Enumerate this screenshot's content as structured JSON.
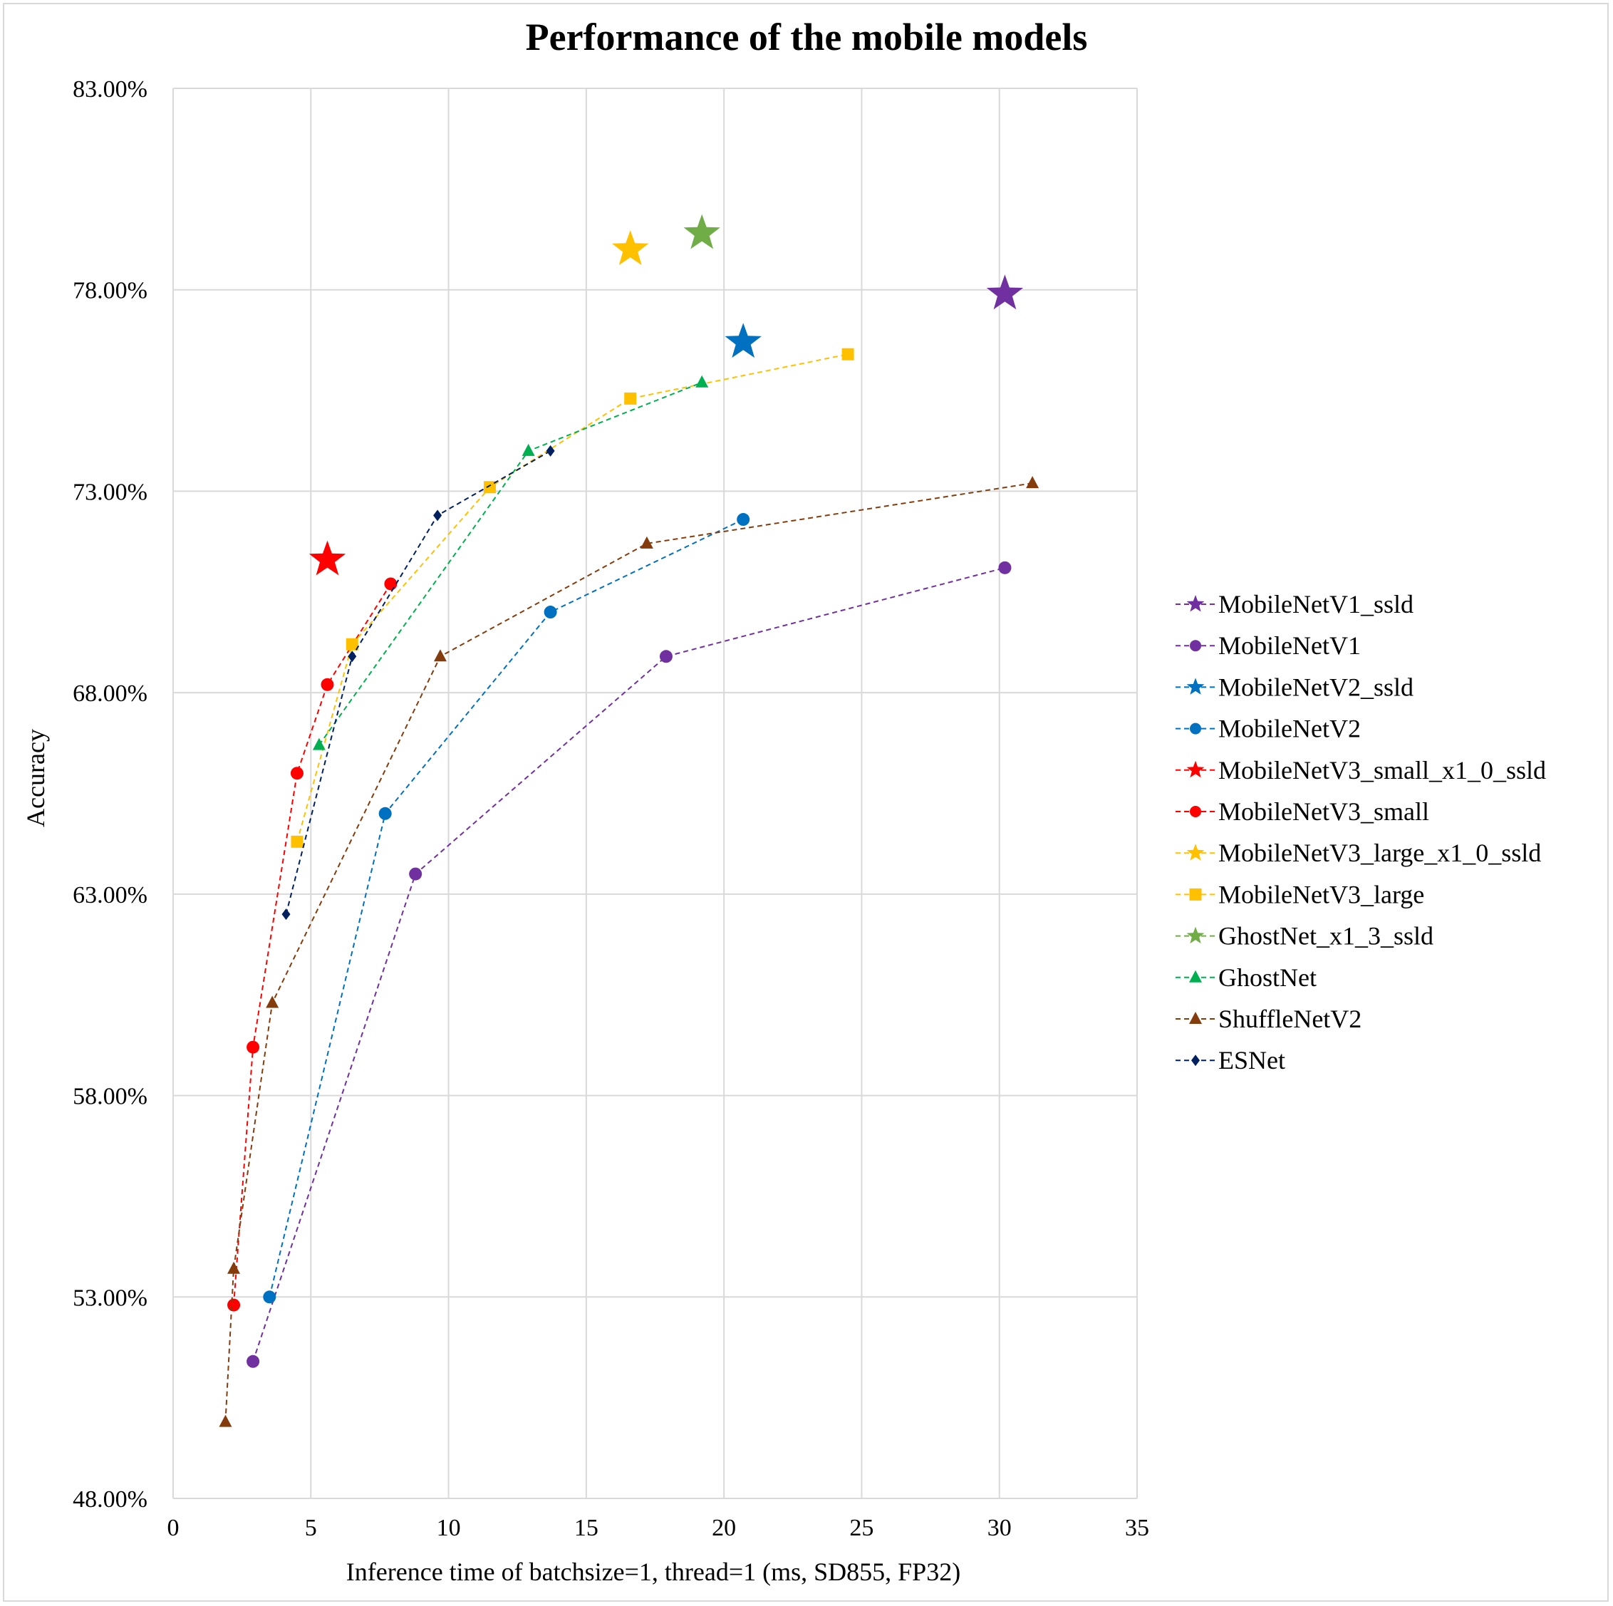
{
  "chart_data": {
    "type": "scatter",
    "title": "Performance of the mobile models",
    "xlabel": "Inference time of batchsize=1, thread=1 (ms, SD855, FP32)",
    "ylabel": "Accuracy",
    "xlim": [
      0,
      35
    ],
    "ylim": [
      0.48,
      0.83
    ],
    "x_ticks": [
      0,
      5,
      10,
      15,
      20,
      25,
      30,
      35
    ],
    "x_tick_labels": [
      "0",
      "5",
      "10",
      "15",
      "20",
      "25",
      "30",
      "35"
    ],
    "y_ticks": [
      0.48,
      0.53,
      0.58,
      0.63,
      0.68,
      0.73,
      0.78,
      0.83
    ],
    "y_tick_labels": [
      "48.00%",
      "53.00%",
      "58.00%",
      "63.00%",
      "68.00%",
      "73.00%",
      "78.00%",
      "83.00%"
    ],
    "grid": "vertical and horizontal major gridlines",
    "legend_position": "right",
    "series": [
      {
        "name": "MobileNetV1_ssld",
        "color": "#7030a0",
        "marker": "star",
        "line": false,
        "x": [
          30.2
        ],
        "y": [
          0.779
        ]
      },
      {
        "name": "MobileNetV1",
        "color": "#7030a0",
        "marker": "circle",
        "line": true,
        "x": [
          2.9,
          8.8,
          17.9,
          30.2
        ],
        "y": [
          0.514,
          0.635,
          0.689,
          0.711
        ]
      },
      {
        "name": "MobileNetV2_ssld",
        "color": "#0070c0",
        "marker": "star",
        "line": false,
        "x": [
          20.7
        ],
        "y": [
          0.767
        ]
      },
      {
        "name": "MobileNetV2",
        "color": "#0070c0",
        "marker": "circle",
        "line": true,
        "x": [
          3.5,
          7.7,
          13.7,
          20.7
        ],
        "y": [
          0.53,
          0.65,
          0.7,
          0.723
        ]
      },
      {
        "name": "MobileNetV3_small_x1_0_ssld",
        "color": "#ff0000",
        "marker": "star",
        "line": false,
        "x": [
          5.6
        ],
        "y": [
          0.713
        ]
      },
      {
        "name": "MobileNetV3_small",
        "color": "#ff0000",
        "marker": "circle",
        "line": true,
        "x": [
          2.2,
          2.9,
          4.5,
          5.6,
          7.9
        ],
        "y": [
          0.528,
          0.592,
          0.66,
          0.682,
          0.707
        ]
      },
      {
        "name": "MobileNetV3_large_x1_0_ssld",
        "color": "#ffc000",
        "marker": "star",
        "line": false,
        "x": [
          16.6
        ],
        "y": [
          0.79
        ]
      },
      {
        "name": "MobileNetV3_large",
        "color": "#ffc000",
        "marker": "square",
        "line": true,
        "x": [
          4.5,
          6.5,
          11.5,
          16.6,
          24.5
        ],
        "y": [
          0.643,
          0.692,
          0.731,
          0.753,
          0.764
        ]
      },
      {
        "name": "GhostNet_x1_3_ssld",
        "color": "#70ad47",
        "marker": "star",
        "line": false,
        "x": [
          19.2
        ],
        "y": [
          0.794
        ]
      },
      {
        "name": "GhostNet",
        "color": "#00b050",
        "marker": "triangle",
        "line": true,
        "x": [
          5.3,
          12.9,
          19.2
        ],
        "y": [
          0.667,
          0.74,
          0.757
        ]
      },
      {
        "name": "ShuffleNetV2",
        "color": "#843c0c",
        "marker": "triangle",
        "line": true,
        "x": [
          1.9,
          2.2,
          3.6,
          9.7,
          17.2,
          31.2
        ],
        "y": [
          0.499,
          0.537,
          0.603,
          0.689,
          0.717,
          0.732
        ]
      },
      {
        "name": "ESNet",
        "color": "#002060",
        "marker": "diamond",
        "line": true,
        "x": [
          4.1,
          6.5,
          9.6,
          13.7
        ],
        "y": [
          0.625,
          0.689,
          0.724,
          0.74
        ]
      }
    ]
  }
}
